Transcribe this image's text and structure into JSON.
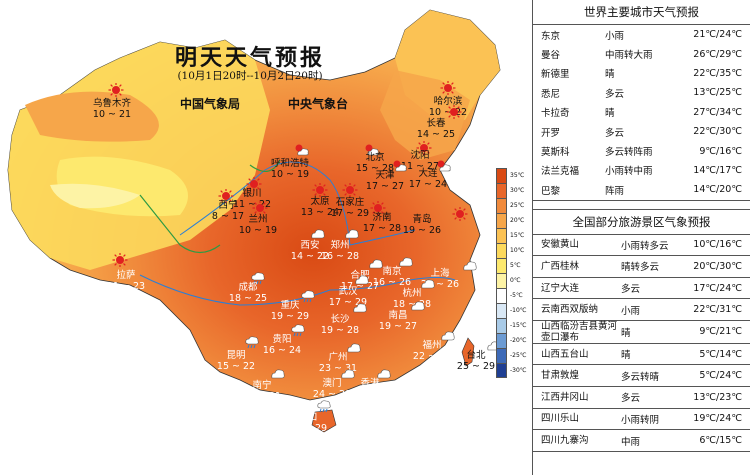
{
  "header": {
    "title": "明天天气预报",
    "subtitle": "(10月1日20时--10月2日20时)",
    "agency_1": "中国气象局",
    "agency_2": "中央气象台"
  },
  "legend": [
    "35℃",
    "30℃",
    "25℃",
    "20℃",
    "15℃",
    "10℃",
    "5℃",
    "0℃",
    "-5℃",
    "-10℃",
    "-15℃",
    "-20℃",
    "-25℃",
    "-30℃"
  ],
  "legend_colors": [
    "#d94a14",
    "#e8662a",
    "#f08a3c",
    "#f6a64a",
    "#fbc254",
    "#fcd95c",
    "#fde96e",
    "#fdf3a5",
    "#ffffff",
    "#d9e8f5",
    "#a9cbe8",
    "#6c9bd3",
    "#3d6ab8",
    "#1f3f93"
  ],
  "cities": [
    {
      "name": "乌鲁木齐",
      "temp": "10 ~ 21",
      "icon": "sun-icon"
    },
    {
      "name": "哈尔滨",
      "temp": "10 ~ 22",
      "icon": "sun-icon"
    },
    {
      "name": "长春",
      "temp": "14 ~ 25",
      "icon": "sun-icon"
    },
    {
      "name": "沈阳",
      "temp": "11 ~ 27",
      "icon": "sun-icon"
    },
    {
      "name": "呼和浩特",
      "temp": "10 ~ 19",
      "icon": "cloud-sun-icon"
    },
    {
      "name": "北京",
      "temp": "15 ~ 28",
      "icon": "cloud-sun-icon"
    },
    {
      "name": "天津",
      "temp": "17 ~ 27",
      "icon": "cloud-sun-icon"
    },
    {
      "name": "大连",
      "temp": "17 ~ 24",
      "icon": "cloud-sun-icon"
    },
    {
      "name": "西宁",
      "temp": "8 ~ 17",
      "icon": "sun-icon"
    },
    {
      "name": "银川",
      "temp": "11 ~ 22",
      "icon": "sun-icon"
    },
    {
      "name": "兰州",
      "temp": "10 ~ 19",
      "icon": "sun-icon"
    },
    {
      "name": "太原",
      "temp": "13 ~ 24",
      "icon": "sun-icon"
    },
    {
      "name": "石家庄",
      "temp": "17 ~ 29",
      "icon": "sun-icon"
    },
    {
      "name": "济南",
      "temp": "17 ~ 28",
      "icon": "sun-icon"
    },
    {
      "name": "青岛",
      "temp": "19 ~ 26",
      "icon": "sun-icon"
    },
    {
      "name": "拉萨",
      "temp": "11 ~ 23",
      "icon": "sun-icon"
    },
    {
      "name": "西安",
      "temp": "14 ~ 22",
      "icon": "cloud-icon"
    },
    {
      "name": "郑州",
      "temp": "16 ~ 28",
      "icon": "cloud-icon"
    },
    {
      "name": "成都",
      "temp": "18 ~ 25",
      "icon": "rain-icon"
    },
    {
      "name": "合肥",
      "temp": "17 ~ 27",
      "icon": "cloud-icon"
    },
    {
      "name": "南京",
      "temp": "16 ~ 26",
      "icon": "cloud-icon"
    },
    {
      "name": "上海",
      "temp": "20 ~ 26",
      "icon": "cloud-icon"
    },
    {
      "name": "武汉",
      "temp": "17 ~ 29",
      "icon": "cloud-icon"
    },
    {
      "name": "杭州",
      "temp": "18 ~ 28",
      "icon": "cloud-icon"
    },
    {
      "name": "重庆",
      "temp": "19 ~ 29",
      "icon": "rain-icon"
    },
    {
      "name": "长沙",
      "temp": "19 ~ 28",
      "icon": "cloud-icon"
    },
    {
      "name": "南昌",
      "temp": "19 ~ 27",
      "icon": "cloud-icon"
    },
    {
      "name": "贵阳",
      "temp": "16 ~ 24",
      "icon": "rain-icon"
    },
    {
      "name": "福州",
      "temp": "22 ~ 29",
      "icon": "cloud-icon"
    },
    {
      "name": "台北",
      "temp": "25 ~ 29",
      "icon": "cloud-icon"
    },
    {
      "name": "昆明",
      "temp": "15 ~ 22",
      "icon": "rain-icon"
    },
    {
      "name": "广州",
      "temp": "23 ~ 31",
      "icon": "cloud-icon"
    },
    {
      "name": "南宁",
      "temp": "23 ~ 31",
      "icon": "cloud-icon"
    },
    {
      "name": "澳门",
      "temp": "24 ~ 29",
      "icon": "cloud-icon"
    },
    {
      "name": "香港",
      "temp": "25 ~ 30",
      "icon": "cloud-icon"
    },
    {
      "name": "海口",
      "temp": "23 ~ 29",
      "icon": "rain-icon"
    }
  ],
  "world": {
    "title": "世界主要城市天气预报",
    "rows": [
      {
        "city": "东京",
        "weather": "小雨",
        "temp": "21℃/24℃"
      },
      {
        "city": "曼谷",
        "weather": "中雨转大雨",
        "temp": "26℃/29℃"
      },
      {
        "city": "新德里",
        "weather": "晴",
        "temp": "22℃/35℃"
      },
      {
        "city": "悉尼",
        "weather": "多云",
        "temp": "13℃/25℃"
      },
      {
        "city": "卡拉奇",
        "weather": "晴",
        "temp": "27℃/34℃"
      },
      {
        "city": "开罗",
        "weather": "多云",
        "temp": "22℃/30℃"
      },
      {
        "city": "莫斯科",
        "weather": "多云转阵雨",
        "temp": "9℃/16℃"
      },
      {
        "city": "法兰克福",
        "weather": "小雨转中雨",
        "temp": "14℃/17℃"
      },
      {
        "city": "巴黎",
        "weather": "阵雨",
        "temp": "14℃/20℃"
      }
    ]
  },
  "scenic": {
    "title": "全国部分旅游景区气象预报",
    "rows": [
      {
        "place": "安徽黄山",
        "weather": "小雨转多云",
        "temp": "10℃/16℃"
      },
      {
        "place": "广西桂林",
        "weather": "晴转多云",
        "temp": "20℃/30℃"
      },
      {
        "place": "辽宁大连",
        "weather": "多云",
        "temp": "17℃/24℃"
      },
      {
        "place": "云南西双版纳",
        "weather": "小雨",
        "temp": "22℃/31℃"
      },
      {
        "place": "山西临汾吉县黄河壶口瀑布",
        "weather": "晴",
        "temp": "9℃/21℃"
      },
      {
        "place": "山西五台山",
        "weather": "晴",
        "temp": "5℃/14℃"
      },
      {
        "place": "甘肃敦煌",
        "weather": "多云转晴",
        "temp": "5℃/24℃"
      },
      {
        "place": "江西井冈山",
        "weather": "多云",
        "temp": "13℃/23℃"
      },
      {
        "place": "四川乐山",
        "weather": "小雨转阴",
        "temp": "19℃/24℃"
      },
      {
        "place": "四川九寨沟",
        "weather": "中雨",
        "temp": "6℃/15℃"
      }
    ]
  }
}
